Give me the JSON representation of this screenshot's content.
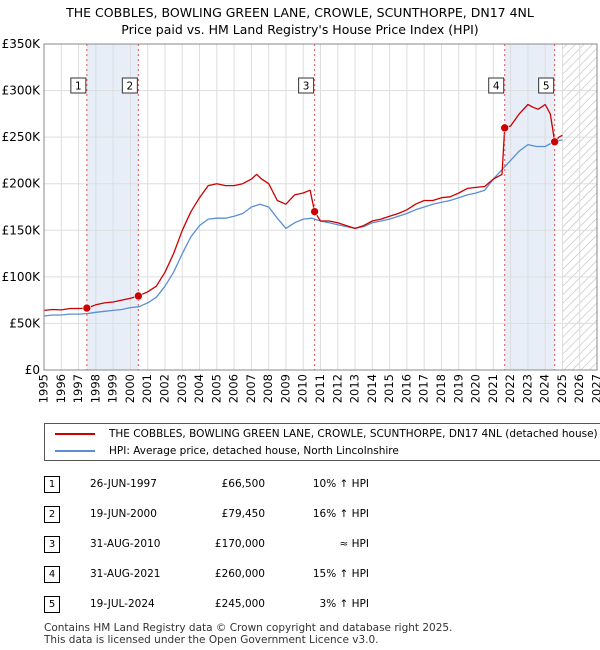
{
  "title_line1": "THE COBBLES, BOWLING GREEN LANE, CROWLE, SCUNTHORPE, DN17 4NL",
  "title_line2": "Price paid vs. HM Land Registry's House Price Index (HPI)",
  "colors": {
    "property": "#cc0000",
    "hpi": "#5b8fd1",
    "highlight": "#e8eef8",
    "marker_line": "#e05050"
  },
  "chart_data": {
    "type": "line",
    "title": "THE COBBLES, BOWLING GREEN LANE, CROWLE, SCUNTHORPE, DN17 4NL",
    "subtitle": "Price paid vs. HM Land Registry's House Price Index (HPI)",
    "xlim": [
      1995,
      2027
    ],
    "ylim": [
      0,
      350000
    ],
    "y_ticks": [
      0,
      50000,
      100000,
      150000,
      200000,
      250000,
      300000,
      350000
    ],
    "y_tick_labels": [
      "£0",
      "£50K",
      "£100K",
      "£150K",
      "£200K",
      "£250K",
      "£300K",
      "£350K"
    ],
    "x_ticks": [
      1995,
      1996,
      1997,
      1998,
      1999,
      2000,
      2001,
      2002,
      2003,
      2004,
      2005,
      2006,
      2007,
      2008,
      2009,
      2010,
      2011,
      2012,
      2013,
      2014,
      2015,
      2016,
      2017,
      2018,
      2019,
      2020,
      2021,
      2022,
      2023,
      2024,
      2025,
      2026,
      2027
    ],
    "x_tick_labels": [
      "1995",
      "1996",
      "1997",
      "1998",
      "1999",
      "2000",
      "2001",
      "2002",
      "2003",
      "2004",
      "2005",
      "2006",
      "2007",
      "2008",
      "2009",
      "2010",
      "2011",
      "2012",
      "2013",
      "2014",
      "2015",
      "2016",
      "2017",
      "2018",
      "2019",
      "2020",
      "2021",
      "2022",
      "2023",
      "2024",
      "2025",
      "2026",
      "2027"
    ],
    "grid": true,
    "forecast_start": 2025.0,
    "highlight_ranges": [
      [
        1997.48,
        2000.46
      ],
      [
        2021.66,
        2024.55
      ]
    ],
    "series": [
      {
        "name": "THE COBBLES, BOWLING GREEN LANE, CROWLE, SCUNTHORPE, DN17 4NL (detached house)",
        "x": [
          1995,
          1995.5,
          1996,
          1996.5,
          1997,
          1997.48,
          1998,
          1998.5,
          1999,
          1999.5,
          2000,
          2000.46,
          2001,
          2001.5,
          2002,
          2002.5,
          2003,
          2003.5,
          2004,
          2004.5,
          2005,
          2005.5,
          2006,
          2006.5,
          2007,
          2007.3,
          2007.6,
          2008,
          2008.5,
          2009,
          2009.5,
          2010,
          2010.4,
          2010.66,
          2011,
          2011.5,
          2012,
          2012.5,
          2013,
          2013.5,
          2014,
          2014.5,
          2015,
          2015.5,
          2016,
          2016.5,
          2017,
          2017.5,
          2018,
          2018.5,
          2019,
          2019.5,
          2020,
          2020.5,
          2021,
          2021.5,
          2021.66,
          2022,
          2022.5,
          2023,
          2023.3,
          2023.6,
          2024,
          2024.3,
          2024.55,
          2024.8,
          2025
        ],
        "y": [
          64000,
          65000,
          64500,
          66000,
          66000,
          66500,
          70000,
          72000,
          73000,
          75000,
          77000,
          79450,
          84000,
          90000,
          105000,
          125000,
          150000,
          170000,
          185000,
          198000,
          200000,
          198000,
          198000,
          200000,
          205000,
          210000,
          205000,
          200000,
          182000,
          178000,
          188000,
          190000,
          193000,
          170000,
          160000,
          160000,
          158000,
          155000,
          152000,
          155000,
          160000,
          162000,
          165000,
          168000,
          172000,
          178000,
          182000,
          182000,
          185000,
          186000,
          190000,
          195000,
          196000,
          197000,
          205000,
          210000,
          260000,
          262000,
          275000,
          285000,
          282000,
          280000,
          285000,
          275000,
          245000,
          250000,
          252000
        ]
      },
      {
        "name": "HPI: Average price, detached house, North Lincolnshire",
        "x": [
          1995,
          1995.5,
          1996,
          1996.5,
          1997,
          1997.5,
          1998,
          1998.5,
          1999,
          1999.5,
          2000,
          2000.5,
          2001,
          2001.5,
          2002,
          2002.5,
          2003,
          2003.5,
          2004,
          2004.5,
          2005,
          2005.5,
          2006,
          2006.5,
          2007,
          2007.5,
          2008,
          2008.5,
          2009,
          2009.5,
          2010,
          2010.5,
          2011,
          2011.5,
          2012,
          2012.5,
          2013,
          2013.5,
          2014,
          2014.5,
          2015,
          2015.5,
          2016,
          2016.5,
          2017,
          2017.5,
          2018,
          2018.5,
          2019,
          2019.5,
          2020,
          2020.5,
          2021,
          2021.5,
          2022,
          2022.5,
          2023,
          2023.5,
          2024,
          2024.5,
          2025
        ],
        "y": [
          58000,
          59000,
          59000,
          60000,
          60000,
          60500,
          62000,
          63000,
          64000,
          65000,
          67000,
          68000,
          72000,
          78000,
          90000,
          105000,
          125000,
          143000,
          155000,
          162000,
          163000,
          163000,
          165000,
          168000,
          175000,
          178000,
          175000,
          163000,
          152000,
          158000,
          162000,
          163000,
          160000,
          158000,
          156000,
          154000,
          152000,
          154000,
          158000,
          160000,
          162000,
          165000,
          168000,
          172000,
          175000,
          178000,
          180000,
          182000,
          185000,
          188000,
          190000,
          193000,
          205000,
          215000,
          225000,
          235000,
          242000,
          240000,
          240000,
          245000,
          247000
        ]
      }
    ],
    "markers": [
      {
        "label": "1",
        "x": 1997.48,
        "y": 66500
      },
      {
        "label": "2",
        "x": 2000.46,
        "y": 79450
      },
      {
        "label": "3",
        "x": 2010.66,
        "y": 170000
      },
      {
        "label": "4",
        "x": 2021.66,
        "y": 260000
      },
      {
        "label": "5",
        "x": 2024.55,
        "y": 245000
      }
    ]
  },
  "legend": {
    "property_label": "THE COBBLES, BOWLING GREEN LANE, CROWLE, SCUNTHORPE, DN17 4NL (detached house)",
    "hpi_label": "HPI: Average price, detached house, North Lincolnshire"
  },
  "sales": [
    {
      "num": "1",
      "date": "26-JUN-1997",
      "price": "£66,500",
      "hpi": "10% ↑ HPI"
    },
    {
      "num": "2",
      "date": "19-JUN-2000",
      "price": "£79,450",
      "hpi": "16% ↑ HPI"
    },
    {
      "num": "3",
      "date": "31-AUG-2010",
      "price": "£170,000",
      "hpi": "≈ HPI"
    },
    {
      "num": "4",
      "date": "31-AUG-2021",
      "price": "£260,000",
      "hpi": "15% ↑ HPI"
    },
    {
      "num": "5",
      "date": "19-JUL-2024",
      "price": "£245,000",
      "hpi": "3% ↑ HPI"
    }
  ],
  "footer_line1": "Contains HM Land Registry data © Crown copyright and database right 2025.",
  "footer_line2": "This data is licensed under the Open Government Licence v3.0."
}
